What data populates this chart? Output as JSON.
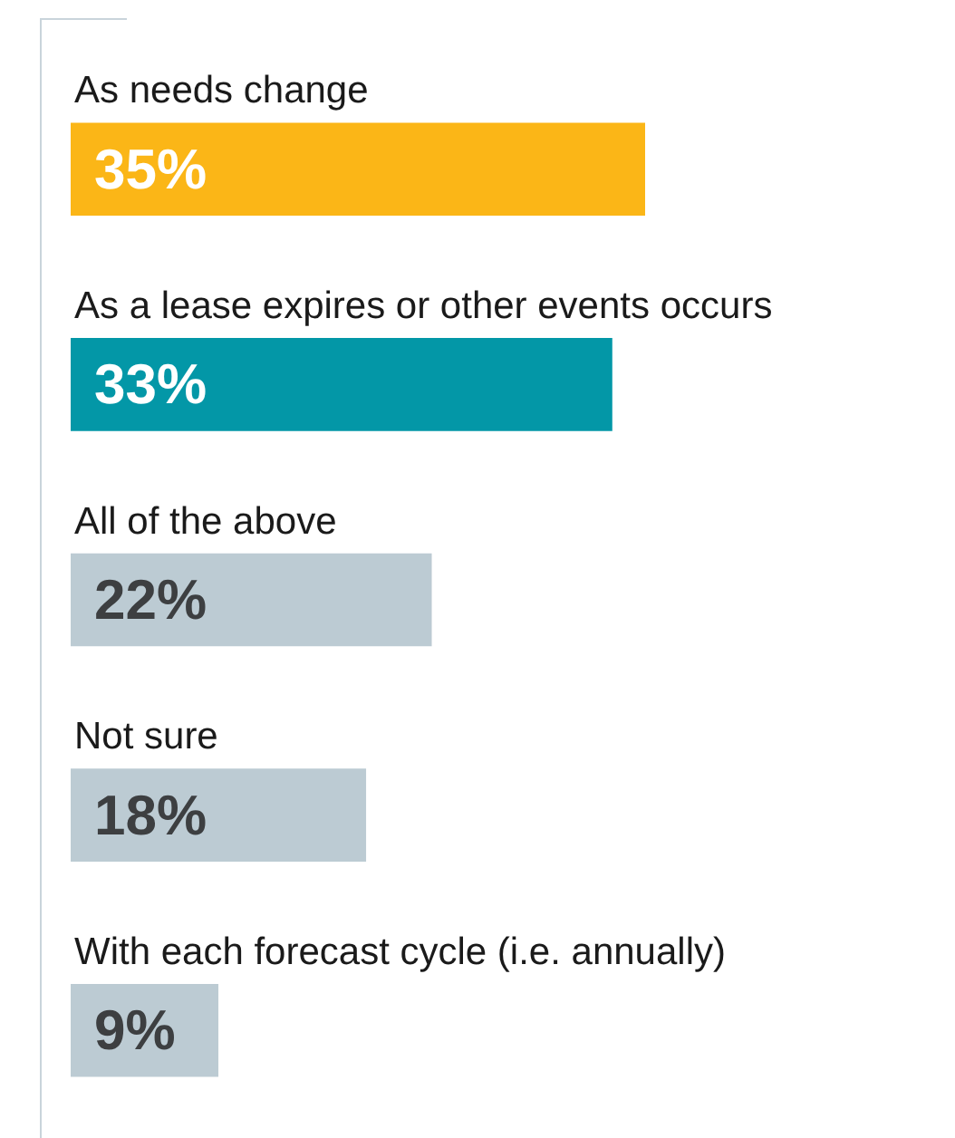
{
  "chart_data": {
    "type": "bar",
    "orientation": "horizontal",
    "categories": [
      "As needs change",
      "As a lease expires or other events occurs",
      "All of the above",
      "Not sure",
      "With each forecast cycle (i.e. annually)"
    ],
    "values": [
      35,
      33,
      22,
      18,
      9
    ],
    "colors": [
      "#fbb617",
      "#0397a7",
      "#bccbd3",
      "#bccbd3",
      "#bccbd3"
    ],
    "value_labels": [
      "35%",
      "33%",
      "22%",
      "18%",
      "9%"
    ],
    "legend": false,
    "tick_labels": false
  }
}
